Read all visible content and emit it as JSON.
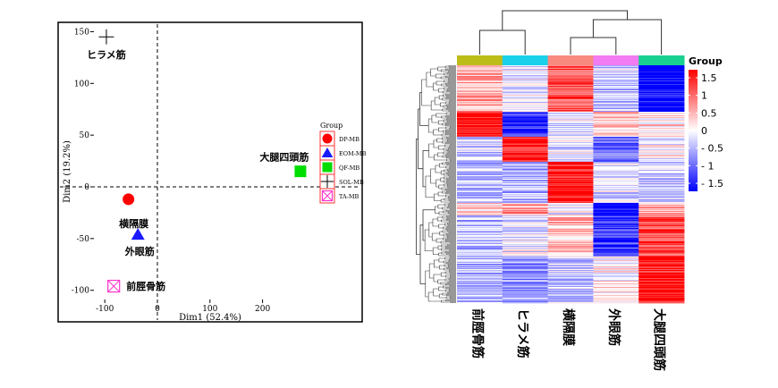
{
  "chart_data": [
    {
      "type": "scatter",
      "xlabel": "Dim1 (52.4%)",
      "ylabel": "Dim2 (19.2%)",
      "xlim": [
        -115,
        290
      ],
      "ylim": [
        -110,
        155
      ],
      "xticks": [
        -100,
        0,
        100,
        200
      ],
      "yticks": [
        -100,
        -50,
        0,
        50,
        100,
        150
      ],
      "grid": false,
      "reference_lines": {
        "x": 0,
        "y": 0,
        "style": "dashed"
      },
      "legend_title": "Group",
      "legend_position": "right",
      "points": [
        {
          "group": "DP-MB",
          "x": -55,
          "y": -12,
          "label": "横隔膜",
          "shape": "circle",
          "color": "#ff0000"
        },
        {
          "group": "EOM-MB",
          "x": -37,
          "y": -46,
          "label": "外眼筋",
          "shape": "triangle",
          "color": "#1a1aff"
        },
        {
          "group": "QF-MB",
          "x": 272,
          "y": 15,
          "label": "大腿四頭筋",
          "shape": "square",
          "color": "#00dd00"
        },
        {
          "group": "SOL-MB",
          "x": -97,
          "y": 145,
          "label": "ヒラメ筋",
          "shape": "plus",
          "color": "#000000"
        },
        {
          "group": "TA-MB",
          "x": -83,
          "y": -96,
          "label": "前脛骨筋",
          "shape": "square-x",
          "color": "#ff33cc"
        }
      ]
    },
    {
      "type": "heatmap",
      "legend_title": "Group",
      "color_scale": {
        "min": -1.5,
        "max": 1.5,
        "low": "#0000ff",
        "mid": "#ffffff",
        "high": "#ff0000",
        "tick_labels": [
          "1.5",
          "1",
          "0.5",
          "0",
          "- 0.5",
          "- 1",
          "- 1.5"
        ]
      },
      "columns": [
        "前脛骨筋",
        "ヒラメ筋",
        "横隔膜",
        "外眼筋",
        "大腿四頭筋"
      ],
      "column_colors": [
        "#bdbd1a",
        "#1ad0ea",
        "#f98a80",
        "#f27af2",
        "#1ad090"
      ],
      "row_blocks": [
        {
          "rows": 52,
          "values": [
            0.5,
            -0.1,
            1.0,
            -0.3,
            -1.5
          ]
        },
        {
          "rows": 28,
          "values": [
            1.4,
            -1.2,
            -0.1,
            0.3,
            0.2
          ]
        },
        {
          "rows": 28,
          "values": [
            -0.3,
            1.4,
            -0.1,
            -0.9,
            0.0
          ]
        },
        {
          "rows": 46,
          "values": [
            -0.4,
            -0.4,
            1.4,
            -0.2,
            -0.3
          ]
        },
        {
          "rows": 14,
          "values": [
            0.2,
            0.6,
            0.0,
            -1.5,
            0.4
          ]
        },
        {
          "rows": 46,
          "values": [
            -0.4,
            -0.1,
            0.4,
            -1.2,
            1.1
          ]
        },
        {
          "rows": 52,
          "values": [
            -0.4,
            -0.6,
            -0.3,
            0.1,
            1.4
          ]
        }
      ]
    }
  ]
}
